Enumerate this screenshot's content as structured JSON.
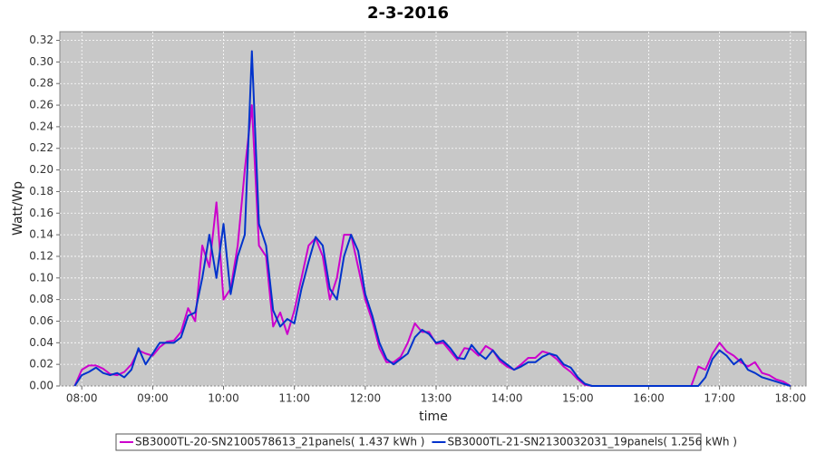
{
  "chart_data": {
    "type": "line",
    "title": "2-3-2016",
    "x_label": "time",
    "y_label": "Watt/Wp",
    "x": [
      7.9,
      8.0,
      8.1,
      8.2,
      8.3,
      8.4,
      8.5,
      8.6,
      8.7,
      8.8,
      8.9,
      9.0,
      9.1,
      9.2,
      9.3,
      9.4,
      9.5,
      9.6,
      9.7,
      9.8,
      9.9,
      10.0,
      10.1,
      10.2,
      10.3,
      10.4,
      10.5,
      10.6,
      10.7,
      10.8,
      10.9,
      11.0,
      11.1,
      11.2,
      11.3,
      11.4,
      11.5,
      11.6,
      11.7,
      11.8,
      11.9,
      12.0,
      12.1,
      12.2,
      12.3,
      12.4,
      12.5,
      12.6,
      12.7,
      12.8,
      12.9,
      13.0,
      13.1,
      13.2,
      13.3,
      13.4,
      13.5,
      13.6,
      13.7,
      13.8,
      13.9,
      14.0,
      14.1,
      14.2,
      14.3,
      14.4,
      14.5,
      14.6,
      14.7,
      14.8,
      14.9,
      15.0,
      15.1,
      15.2,
      15.3,
      15.4,
      15.5,
      15.6,
      15.7,
      15.8,
      15.9,
      16.0,
      16.1,
      16.2,
      16.3,
      16.4,
      16.5,
      16.6,
      16.7,
      16.8,
      16.9,
      17.0,
      17.1,
      17.2,
      17.3,
      17.4,
      17.5,
      17.6,
      17.7,
      17.8,
      17.9,
      18.0
    ],
    "series": [
      {
        "name": "SB3000TL-20-SN2100578613_21panels( 1.437 kWh )",
        "color": "#cc00cc",
        "values": [
          0,
          0.015,
          0.019,
          0.019,
          0.016,
          0.011,
          0.01,
          0.013,
          0.02,
          0.033,
          0.03,
          0.028,
          0.036,
          0.041,
          0.042,
          0.05,
          0.072,
          0.06,
          0.13,
          0.11,
          0.17,
          0.08,
          0.09,
          0.13,
          0.2,
          0.26,
          0.13,
          0.12,
          0.055,
          0.068,
          0.048,
          0.07,
          0.1,
          0.13,
          0.137,
          0.12,
          0.08,
          0.1,
          0.14,
          0.14,
          0.11,
          0.08,
          0.06,
          0.035,
          0.022,
          0.022,
          0.027,
          0.04,
          0.058,
          0.05,
          0.05,
          0.039,
          0.04,
          0.032,
          0.024,
          0.035,
          0.034,
          0.028,
          0.037,
          0.033,
          0.023,
          0.018,
          0.015,
          0.02,
          0.026,
          0.026,
          0.032,
          0.03,
          0.025,
          0.018,
          0.013,
          0.006,
          0.001,
          0,
          0,
          0,
          0,
          0,
          0,
          0,
          0,
          0,
          0,
          0,
          0,
          0,
          0,
          0,
          0.018,
          0.015,
          0.03,
          0.04,
          0.032,
          0.028,
          0.022,
          0.018,
          0.022,
          0.012,
          0.01,
          0.006,
          0.004,
          0
        ]
      },
      {
        "name": "SB3000TL-21-SN2130032031_19panels( 1.256 kWh )",
        "color": "#0033cc",
        "values": [
          0,
          0.01,
          0.013,
          0.017,
          0.012,
          0.01,
          0.012,
          0.008,
          0.015,
          0.035,
          0.02,
          0.03,
          0.04,
          0.04,
          0.04,
          0.045,
          0.065,
          0.068,
          0.1,
          0.14,
          0.1,
          0.15,
          0.085,
          0.12,
          0.14,
          0.31,
          0.15,
          0.13,
          0.07,
          0.055,
          0.062,
          0.058,
          0.09,
          0.115,
          0.138,
          0.13,
          0.09,
          0.08,
          0.12,
          0.14,
          0.125,
          0.085,
          0.065,
          0.04,
          0.025,
          0.02,
          0.025,
          0.03,
          0.045,
          0.052,
          0.048,
          0.04,
          0.042,
          0.035,
          0.026,
          0.025,
          0.038,
          0.03,
          0.025,
          0.033,
          0.025,
          0.02,
          0.015,
          0.018,
          0.022,
          0.022,
          0.027,
          0.03,
          0.028,
          0.02,
          0.017,
          0.008,
          0.002,
          0,
          0,
          0,
          0,
          0,
          0,
          0,
          0,
          0,
          0,
          0,
          0,
          0,
          0,
          0,
          0,
          0.008,
          0.025,
          0.033,
          0.028,
          0.02,
          0.025,
          0.015,
          0.012,
          0.008,
          0.006,
          0.004,
          0.002,
          0
        ]
      }
    ],
    "xlim": [
      7.69,
      18.22
    ],
    "xticks": [
      {
        "value": 8,
        "label": "08:00"
      },
      {
        "value": 9,
        "label": "09:00"
      },
      {
        "value": 10,
        "label": "10:00"
      },
      {
        "value": 11,
        "label": "11:00"
      },
      {
        "value": 12,
        "label": "12:00"
      },
      {
        "value": 13,
        "label": "13:00"
      },
      {
        "value": 14,
        "label": "14:00"
      },
      {
        "value": 15,
        "label": "15:00"
      },
      {
        "value": 16,
        "label": "16:00"
      },
      {
        "value": 17,
        "label": "17:00"
      },
      {
        "value": 18,
        "label": "18:00"
      }
    ],
    "ylim": [
      0,
      0.328
    ],
    "yticks": [
      {
        "value": 0,
        "label": "0.00"
      },
      {
        "value": 0.02,
        "label": "0.02"
      },
      {
        "value": 0.04,
        "label": "0.04"
      },
      {
        "value": 0.06,
        "label": "0.06"
      },
      {
        "value": 0.08,
        "label": "0.08"
      },
      {
        "value": 0.1,
        "label": "0.10"
      },
      {
        "value": 0.12,
        "label": "0.12"
      },
      {
        "value": 0.14,
        "label": "0.14"
      },
      {
        "value": 0.16,
        "label": "0.16"
      },
      {
        "value": 0.18,
        "label": "0.18"
      },
      {
        "value": 0.2,
        "label": "0.20"
      },
      {
        "value": 0.22,
        "label": "0.22"
      },
      {
        "value": 0.24,
        "label": "0.24"
      },
      {
        "value": 0.26,
        "label": "0.26"
      },
      {
        "value": 0.28,
        "label": "0.28"
      },
      {
        "value": 0.3,
        "label": "0.30"
      },
      {
        "value": 0.32,
        "label": "0.32"
      }
    ],
    "grid": true
  }
}
